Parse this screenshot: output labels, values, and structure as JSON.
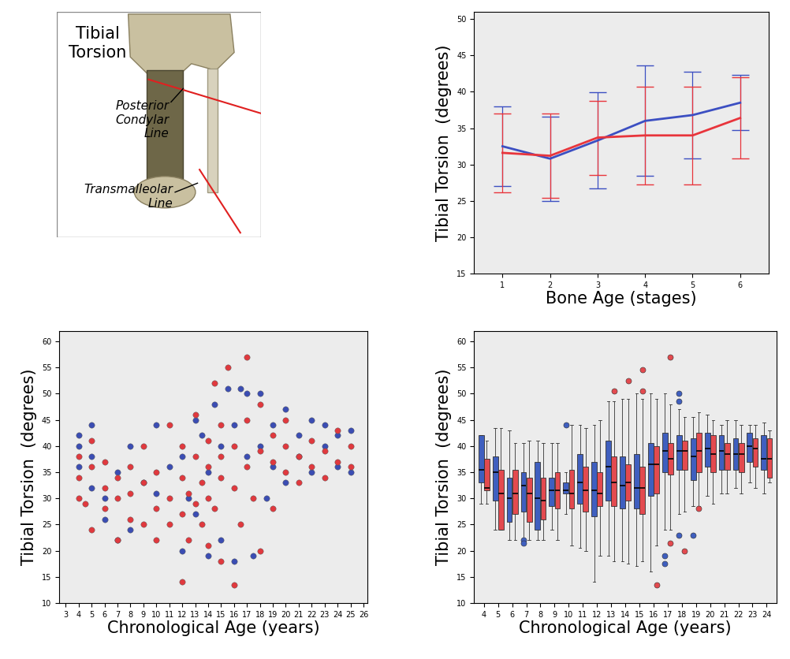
{
  "chart_data": [
    {
      "type": "diagram",
      "title": "Tibial\nTorsion",
      "annotations": [
        "Posterior\nCondylar\nLine",
        "Transmalleolar\nLine"
      ]
    },
    {
      "type": "line",
      "x_label": "Bone Age (stages)",
      "y_label": "Tibial Torsion  (degrees)",
      "x": [
        1,
        2,
        3,
        4,
        5,
        6
      ],
      "xlim": [
        0.4,
        6.6
      ],
      "xticks": [
        1,
        2,
        3,
        4,
        5,
        6
      ],
      "ylim": [
        15,
        51
      ],
      "yticks": [
        15,
        20,
        25,
        30,
        35,
        40,
        45,
        50
      ],
      "series": [
        {
          "color": "#3c4fc2",
          "values": [
            32.5,
            30.8,
            33.3,
            36.0,
            36.8,
            38.5
          ],
          "error": [
            5.5,
            5.8,
            6.6,
            7.6,
            6.0,
            3.8
          ]
        },
        {
          "color": "#e8353c",
          "values": [
            31.6,
            31.2,
            33.7,
            34.0,
            34.0,
            36.4
          ],
          "error": [
            5.4,
            5.8,
            5.1,
            6.7,
            6.7,
            5.6
          ]
        }
      ]
    },
    {
      "type": "scatter",
      "x_label": "Chronological Age (years)",
      "y_label": "Tibial Torsion  (degrees)",
      "xlim": [
        2.5,
        26.3
      ],
      "xticks": [
        3,
        4,
        5,
        6,
        7,
        8,
        9,
        10,
        11,
        12,
        13,
        14,
        15,
        16,
        17,
        18,
        19,
        20,
        21,
        22,
        23,
        24,
        25,
        26
      ],
      "ylim": [
        10,
        62
      ],
      "yticks": [
        10,
        15,
        20,
        25,
        30,
        35,
        40,
        45,
        50,
        55,
        60
      ],
      "series": [
        {
          "color": "#3b4db3",
          "x": [
            4,
            4,
            4,
            5,
            5,
            5,
            6,
            6,
            7,
            7,
            8,
            8,
            9,
            10,
            10,
            11,
            12,
            12,
            12.5,
            13,
            13,
            13.5,
            14,
            14,
            14.5,
            15,
            15,
            15.5,
            16,
            16,
            16.5,
            17,
            17,
            17.5,
            18,
            18,
            18.5,
            19,
            19,
            20,
            20,
            21,
            21,
            22,
            22,
            23,
            23,
            24,
            24,
            25,
            25
          ],
          "values": [
            42,
            40,
            36,
            44,
            38,
            32,
            30,
            26,
            22,
            35,
            24,
            40,
            33,
            44,
            31,
            36,
            20,
            38,
            30,
            45,
            27,
            42,
            19,
            35,
            48,
            22,
            40,
            51,
            18,
            44,
            51,
            50,
            38,
            19,
            50,
            40,
            30,
            44,
            36,
            47,
            33,
            42,
            38,
            45,
            35,
            40,
            44,
            42,
            36,
            43,
            35
          ]
        },
        {
          "color": "#e0393e",
          "x": [
            4,
            4,
            4,
            4.5,
            5,
            5,
            5,
            6,
            6,
            6,
            7,
            7,
            7,
            8,
            8,
            8,
            9,
            9,
            9,
            10,
            10,
            10,
            11,
            11,
            11,
            12,
            12,
            12,
            12,
            12.5,
            12.5,
            13,
            13,
            13,
            13.5,
            13.5,
            14,
            14,
            14,
            14,
            14.5,
            14.5,
            15,
            15,
            15,
            15,
            15.5,
            16,
            16,
            16,
            16.5,
            17,
            17,
            17,
            17.5,
            18,
            18,
            18,
            19,
            19,
            19,
            20,
            20,
            20,
            21,
            21,
            22,
            22,
            23,
            23,
            24,
            24,
            25,
            25
          ],
          "values": [
            38,
            30,
            34,
            29,
            36,
            24,
            41,
            32,
            28,
            37,
            22,
            30,
            34,
            26,
            36,
            31,
            25,
            40,
            33,
            28,
            35,
            22,
            30,
            44,
            25,
            14,
            34,
            27,
            40,
            31,
            22,
            38,
            29,
            46,
            33,
            25,
            30,
            41,
            36,
            21,
            52,
            28,
            34,
            44,
            18,
            38,
            55,
            13.5,
            32,
            40,
            25,
            57,
            36,
            45,
            30,
            39,
            48,
            20,
            37,
            42,
            28,
            40,
            35,
            45,
            38,
            33,
            41,
            36,
            39,
            34,
            43,
            37,
            40,
            36
          ]
        }
      ]
    },
    {
      "type": "box",
      "x_label": "Chronological Age (years)",
      "y_label": "Tibial Torsion  (degrees)",
      "x": [
        4,
        5,
        6,
        7,
        8,
        9,
        10,
        11,
        12,
        13,
        14,
        15,
        16,
        17,
        18,
        19,
        20,
        21,
        22,
        23,
        24
      ],
      "xlim": [
        3.3,
        24.7
      ],
      "xticks": [
        4,
        5,
        6,
        7,
        8,
        9,
        10,
        11,
        12,
        13,
        14,
        15,
        16,
        17,
        18,
        19,
        20,
        21,
        22,
        23,
        24
      ],
      "ylim": [
        10,
        62
      ],
      "yticks": [
        10,
        15,
        20,
        25,
        30,
        35,
        40,
        45,
        50,
        55,
        60
      ],
      "series": [
        {
          "color": "#3f5fbf",
          "whislo": [
            29,
            24,
            22,
            22,
            22,
            24,
            27,
            20.5,
            14,
            19,
            18,
            17,
            16,
            24,
            27,
            28.5,
            30.5,
            31,
            32,
            33,
            31
          ],
          "q1": [
            33,
            29.5,
            25.5,
            27.5,
            24,
            28.5,
            31,
            29,
            26.5,
            29.5,
            28,
            28,
            30.5,
            35,
            35.5,
            33.5,
            36,
            35.5,
            35.5,
            37,
            35.5
          ],
          "median": [
            35.5,
            35,
            30,
            32.5,
            30,
            31.5,
            31.5,
            33,
            31.5,
            36,
            32.5,
            32,
            36.5,
            39,
            39,
            38,
            39.5,
            39,
            38.5,
            40,
            37.5
          ],
          "q3": [
            42,
            38,
            34,
            35,
            37,
            34,
            33,
            38.5,
            37,
            41,
            38,
            38.5,
            40.5,
            42.5,
            42,
            41.5,
            42.5,
            42,
            41.5,
            42.5,
            42
          ],
          "whishi": [
            42,
            43.5,
            43,
            40.5,
            41,
            40.5,
            35,
            44,
            44,
            48.5,
            49,
            50,
            50,
            50,
            47,
            45.5,
            46,
            44,
            45,
            44,
            44.5
          ],
          "outliers_x": [
            7,
            7,
            10,
            17,
            17,
            18,
            18,
            18,
            19
          ],
          "outliers_y": [
            22,
            21.5,
            44,
            19,
            17.5,
            50,
            48.5,
            23,
            23
          ]
        },
        {
          "color": "#e34a4f",
          "whislo": [
            29,
            24,
            22,
            22,
            22,
            22,
            21,
            20,
            19,
            18,
            17.5,
            18,
            21,
            24,
            27.5,
            28.5,
            29,
            31,
            31,
            32,
            33
          ],
          "q1": [
            31.5,
            24,
            27,
            25.5,
            26,
            28,
            28,
            27.5,
            28.5,
            28.5,
            29.5,
            27,
            31,
            34.5,
            35.5,
            35,
            35,
            35.5,
            35,
            36,
            34
          ],
          "median": [
            32,
            31,
            31,
            31,
            29.5,
            31.5,
            31,
            31.5,
            31,
            33,
            33,
            32,
            36.5,
            37.5,
            39,
            39,
            38.5,
            38.5,
            38.5,
            39.5,
            37.5
          ],
          "q3": [
            37.5,
            35.5,
            35.5,
            34,
            34,
            35,
            35.5,
            36,
            35,
            38,
            36.5,
            36,
            40,
            40.5,
            41,
            42.5,
            42,
            40.5,
            40.5,
            41.5,
            41.5
          ],
          "whishi": [
            41,
            43.5,
            40.5,
            41,
            40.5,
            40.5,
            44,
            43.5,
            45,
            48.5,
            49,
            49,
            49,
            48,
            45.5,
            46.5,
            45,
            45,
            44,
            44,
            43
          ],
          "outliers_x": [
            13,
            14,
            15,
            15,
            16,
            17,
            17,
            18,
            19
          ],
          "outliers_y": [
            50.5,
            52.5,
            54.5,
            50.5,
            13.5,
            57,
            21.5,
            20,
            28
          ]
        }
      ]
    }
  ]
}
